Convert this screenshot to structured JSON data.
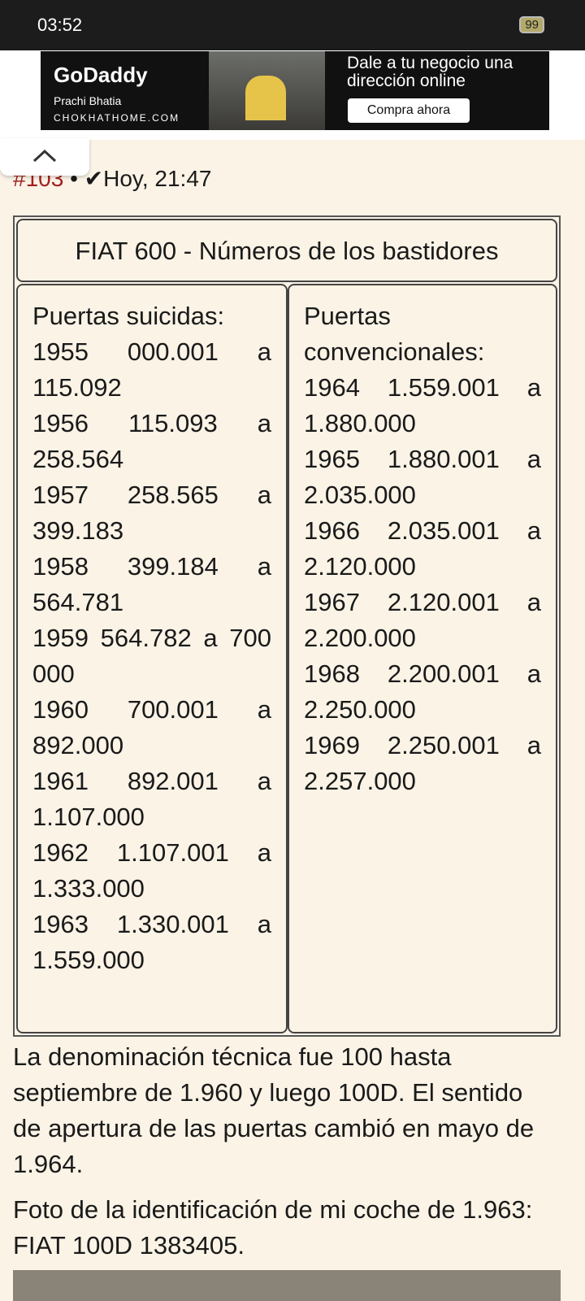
{
  "status_bar": {
    "time": "03:52",
    "battery": "99"
  },
  "ad": {
    "brand": "GoDaddy",
    "person": "Prachi Bhatia",
    "site": "CHOKHATHOME.COM",
    "headline": "Dale a tu negocio una dirección online",
    "button": "Compra ahora"
  },
  "post": {
    "number": "#103",
    "time": "Hoy, 21:47",
    "table": {
      "title": "FIAT 600 - Números de los bastidores",
      "columns": [
        {
          "heading": "Puertas suicidas:",
          "entries": [
            {
              "year": "1955",
              "range": "000.001 a 115.092"
            },
            {
              "year": "1956",
              "range": "115.093 a 258.564"
            },
            {
              "year": "1957",
              "range": "258.565 a 399.183"
            },
            {
              "year": "1958",
              "range": "399.184 a 564.781"
            },
            {
              "year": "1959",
              "range": "564.782 a 700 000"
            },
            {
              "year": "1960",
              "range": "700.001 a 892.000"
            },
            {
              "year": "1961",
              "range": "892.001 a 1.107.000"
            },
            {
              "year": "1962",
              "range": "1.107.001 a 1.333.000"
            },
            {
              "year": "1963",
              "range": "1.330.001 a 1.559.000"
            }
          ]
        },
        {
          "heading": "Puertas convencionales:",
          "entries": [
            {
              "year": "1964",
              "range": "1.559.001 a 1.880.000"
            },
            {
              "year": "1965",
              "range": "1.880.001 a 2.035.000"
            },
            {
              "year": "1966",
              "range": "2.035.001 a 2.120.000"
            },
            {
              "year": "1967",
              "range": "2.120.001 a 2.200.000"
            },
            {
              "year": "1968",
              "range": "2.200.001 a 2.250.000"
            },
            {
              "year": "1969",
              "range": "2.250.001 a 2.257.000"
            }
          ]
        }
      ]
    },
    "paragraphs": [
      "La denominación técnica fue 100 hasta septiembre de 1.960 y luego 100D. El sentido de apertura de las puertas cambió en mayo de 1.964.",
      "Foto de la identificación de mi coche de 1.963: FIAT 100D 1383405."
    ]
  }
}
